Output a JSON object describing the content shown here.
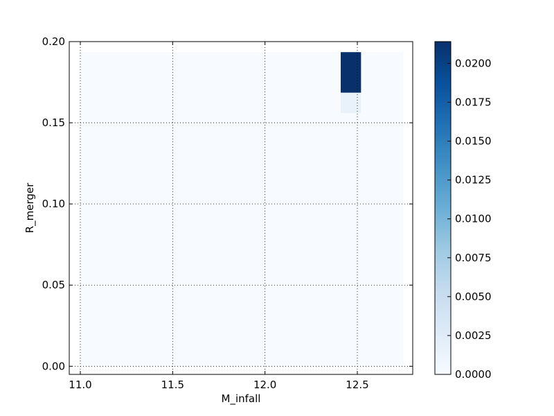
{
  "chart_data": {
    "type": "heatmap",
    "title": "",
    "xlabel": "M_infall",
    "ylabel": "R_merger",
    "xlim": [
      10.94,
      12.8
    ],
    "ylim": [
      -0.005,
      0.2
    ],
    "x_ticks": [
      11.0,
      11.5,
      12.0,
      12.5
    ],
    "x_tick_labels": [
      "11.0",
      "11.5",
      "12.0",
      "12.5"
    ],
    "y_ticks": [
      0.0,
      0.05,
      0.1,
      0.15,
      0.2
    ],
    "y_tick_labels": [
      "0.00",
      "0.05",
      "0.10",
      "0.15",
      "0.20"
    ],
    "grid": true,
    "grid_style": "dotted",
    "colormap": "Blues",
    "colormap_stops": [
      "#f7fbff",
      "#deebf7",
      "#c6dbef",
      "#9ecae1",
      "#6baed6",
      "#4292c6",
      "#2171b5",
      "#08519c",
      "#08306b"
    ],
    "data_extent": {
      "x": [
        11.0,
        12.75
      ],
      "y": [
        0.0,
        0.1935
      ]
    },
    "background_value": 0.0,
    "cells": [
      {
        "x0": 12.41,
        "x1": 12.52,
        "y0": 0.1685,
        "y1": 0.1935,
        "value": 0.0214
      },
      {
        "x0": 12.41,
        "x1": 12.52,
        "y0": 0.156,
        "y1": 0.1685,
        "value": 0.0015
      }
    ],
    "colorbar": {
      "min": 0.0,
      "max": 0.0214,
      "ticks": [
        0.0,
        0.0025,
        0.005,
        0.0075,
        0.01,
        0.0125,
        0.015,
        0.0175,
        0.02
      ],
      "tick_labels": [
        "0.0000",
        "0.0025",
        "0.0050",
        "0.0075",
        "0.0100",
        "0.0125",
        "0.0150",
        "0.0175",
        "0.0200"
      ]
    }
  }
}
